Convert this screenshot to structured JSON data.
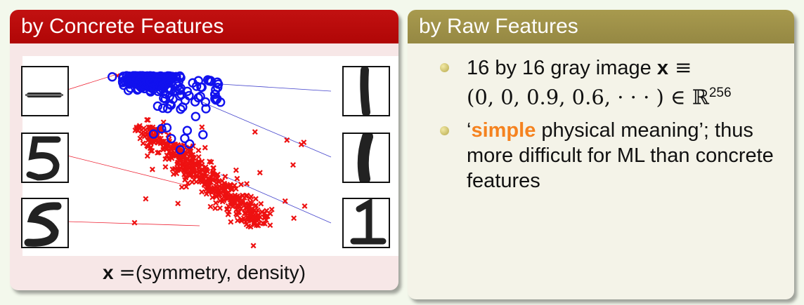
{
  "left_panel": {
    "title": "by Concrete Features",
    "caption": {
      "x": "x",
      "eq": "=",
      "rest": "(symmetry, density)"
    }
  },
  "right_panel": {
    "title": "by Raw Features",
    "bullet1": {
      "pre": "16 by 16 gray image ",
      "x": "x",
      "equiv": " ≡",
      "vector": "(0, 0, 0.9, 0.6, · · · ) ∈ ",
      "set": "ℝ",
      "exp": "256"
    },
    "bullet2": {
      "open_quote": "‘",
      "highlight": "simple",
      "rest": " physical meaning’; thus more difficult for ML than concrete features"
    }
  },
  "colors": {
    "header_left": "#c21111",
    "header_right": "#a89a4e",
    "highlight": "#f5821f"
  },
  "icons": [
    "digit-1-thin-image",
    "digit-1-thick-image",
    "digit-1-serif-image",
    "digit-1-dash-image",
    "digit-5-image",
    "digit-5-cursive-image"
  ]
}
